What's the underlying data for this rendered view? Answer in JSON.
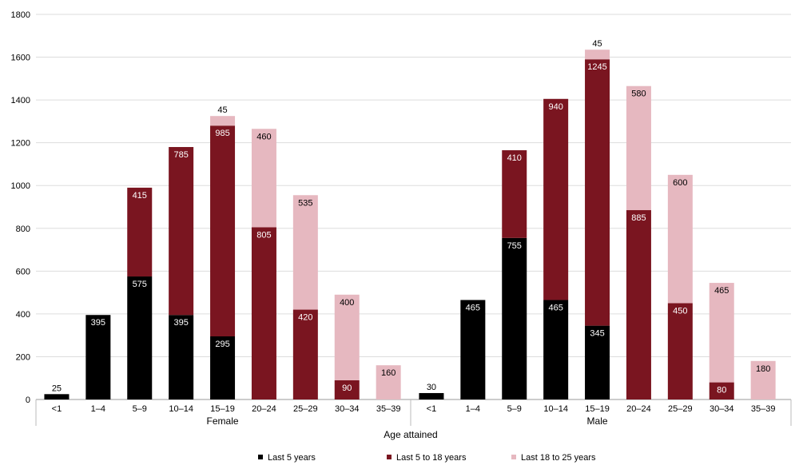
{
  "chart_data": {
    "type": "bar",
    "stacked": true,
    "title": "",
    "xlabel": "Age attained",
    "ylabel": "",
    "ylim": [
      0,
      1800
    ],
    "yticks": [
      0,
      200,
      400,
      600,
      800,
      1000,
      1200,
      1400,
      1600,
      1800
    ],
    "grid": true,
    "legend_position": "bottom",
    "groups": [
      {
        "name": "Female",
        "categories": [
          "<1",
          "1–4",
          "5–9",
          "10–14",
          "15–19",
          "20–24",
          "25–29",
          "30–34",
          "35–39"
        ],
        "series": [
          {
            "name": "Last 5 years",
            "values": [
              25,
              395,
              575,
              395,
              295,
              0,
              0,
              0,
              0
            ]
          },
          {
            "name": "Last 5 to 18 years",
            "values": [
              0,
              0,
              415,
              785,
              985,
              805,
              420,
              90,
              0
            ]
          },
          {
            "name": "Last 18 to 25 years",
            "values": [
              0,
              0,
              0,
              0,
              45,
              460,
              535,
              400,
              160
            ]
          }
        ]
      },
      {
        "name": "Male",
        "categories": [
          "<1",
          "1–4",
          "5–9",
          "10–14",
          "15–19",
          "20–24",
          "25–29",
          "30–34",
          "35–39"
        ],
        "series": [
          {
            "name": "Last 5 years",
            "values": [
              30,
              465,
              755,
              465,
              345,
              0,
              0,
              0,
              0
            ]
          },
          {
            "name": "Last 5 to 18 years",
            "values": [
              0,
              0,
              410,
              940,
              1245,
              885,
              450,
              80,
              0
            ]
          },
          {
            "name": "Last 18 to 25 years",
            "values": [
              0,
              0,
              0,
              0,
              45,
              580,
              600,
              465,
              180
            ]
          }
        ]
      }
    ],
    "series_colors": [
      "#000000",
      "#7a1520",
      "#e6b8c0"
    ],
    "legend": [
      "Last 5 years",
      "Last 5 to 18 years",
      "Last 18 to 25 years"
    ]
  }
}
